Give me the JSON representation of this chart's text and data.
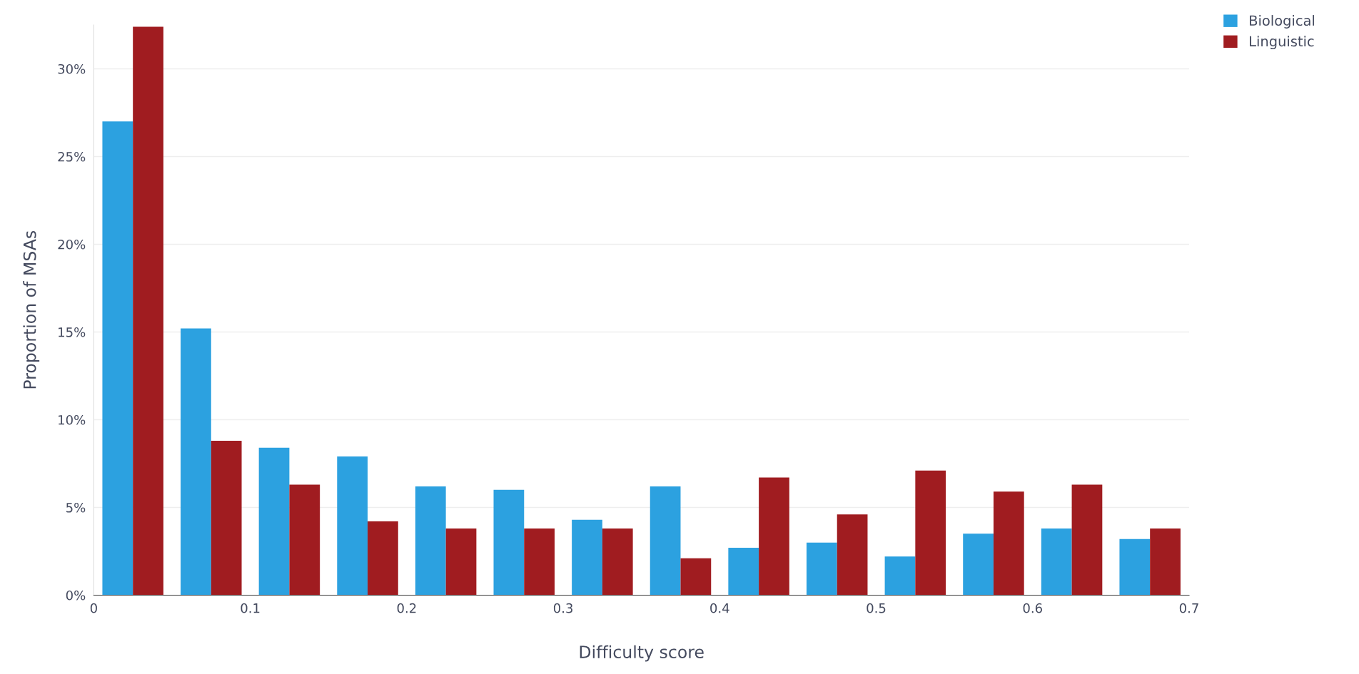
{
  "chart_data": {
    "type": "histogram",
    "xlabel": "Difficulty score",
    "ylabel": "Proportion of MSAs",
    "bins": [
      0,
      0.05,
      0.1,
      0.15,
      0.2,
      0.25,
      0.3,
      0.35,
      0.4,
      0.45,
      0.5,
      0.55,
      0.6,
      0.65,
      0.7
    ],
    "series": [
      {
        "name": "Biological",
        "color": "#2ca1e0",
        "values": [
          27.0,
          15.2,
          8.4,
          7.9,
          6.2,
          6.0,
          4.3,
          6.2,
          2.7,
          3.0,
          2.2,
          3.5,
          3.8,
          3.2
        ]
      },
      {
        "name": "Linguistic",
        "color": "#a01c20",
        "values": [
          32.4,
          8.8,
          6.3,
          4.2,
          3.8,
          3.8,
          3.8,
          2.1,
          6.7,
          4.6,
          7.1,
          5.9,
          6.3,
          3.8
        ]
      }
    ],
    "xlim": [
      0,
      0.7
    ],
    "xticks": [
      0,
      0.1,
      0.2,
      0.3,
      0.4,
      0.5,
      0.6,
      0.7
    ],
    "ylim": [
      0,
      32.5
    ],
    "yticks": [
      {
        "value": 0,
        "label": "0%"
      },
      {
        "value": 5,
        "label": "5%"
      },
      {
        "value": 10,
        "label": "10%"
      },
      {
        "value": 15,
        "label": "15%"
      },
      {
        "value": 20,
        "label": "20%"
      },
      {
        "value": 25,
        "label": "25%"
      },
      {
        "value": 30,
        "label": "30%"
      }
    ],
    "grid": "y",
    "legend": "top right"
  }
}
